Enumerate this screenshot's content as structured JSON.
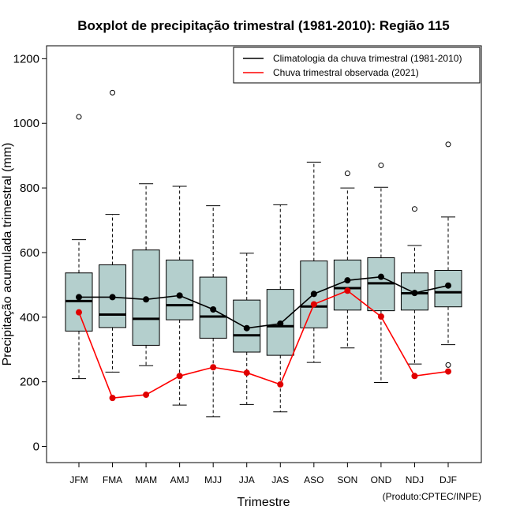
{
  "chart_data": {
    "type": "boxplot",
    "title": "Boxplot de precipitação trimestral (1981-2010): Região 115",
    "xlabel": "Trimestre",
    "ylabel": "Precipitação acumulada trimestral (mm)",
    "ylim": [
      -50,
      1240
    ],
    "yticks": [
      0,
      200,
      400,
      600,
      800,
      1000,
      1200
    ],
    "credit": "(Produto:CPTEC/INPE)",
    "colors": {
      "box_fill": "#b4cfcd",
      "climatology": "#000000",
      "observed": "#ff0000",
      "observed_marker": "#e00000"
    },
    "categories": [
      "JFM",
      "FMA",
      "MAM",
      "AMJ",
      "MJJ",
      "JJA",
      "JAS",
      "ASO",
      "SON",
      "OND",
      "NDJ",
      "DJF"
    ],
    "boxes": [
      {
        "whisker_low": 210,
        "q1": 357,
        "median": 450,
        "q3": 537,
        "whisker_high": 640,
        "outliers": [
          1020
        ]
      },
      {
        "whisker_low": 230,
        "q1": 368,
        "median": 408,
        "q3": 562,
        "whisker_high": 718,
        "outliers": [
          1095
        ]
      },
      {
        "whisker_low": 250,
        "q1": 313,
        "median": 395,
        "q3": 608,
        "whisker_high": 813,
        "outliers": []
      },
      {
        "whisker_low": 128,
        "q1": 392,
        "median": 437,
        "q3": 577,
        "whisker_high": 805,
        "outliers": []
      },
      {
        "whisker_low": 92,
        "q1": 335,
        "median": 402,
        "q3": 524,
        "whisker_high": 745,
        "outliers": []
      },
      {
        "whisker_low": 130,
        "q1": 292,
        "median": 344,
        "q3": 453,
        "whisker_high": 598,
        "outliers": []
      },
      {
        "whisker_low": 107,
        "q1": 282,
        "median": 372,
        "q3": 486,
        "whisker_high": 748,
        "outliers": []
      },
      {
        "whisker_low": 260,
        "q1": 367,
        "median": 433,
        "q3": 574,
        "whisker_high": 880,
        "outliers": []
      },
      {
        "whisker_low": 305,
        "q1": 422,
        "median": 490,
        "q3": 577,
        "whisker_high": 800,
        "outliers": [
          845
        ]
      },
      {
        "whisker_low": 198,
        "q1": 420,
        "median": 505,
        "q3": 584,
        "whisker_high": 802,
        "outliers": [
          870
        ]
      },
      {
        "whisker_low": 255,
        "q1": 422,
        "median": 474,
        "q3": 537,
        "whisker_high": 622,
        "outliers": [
          735
        ]
      },
      {
        "whisker_low": 315,
        "q1": 432,
        "median": 477,
        "q3": 545,
        "whisker_high": 710,
        "outliers": [
          935,
          252
        ]
      }
    ],
    "series": [
      {
        "name": "Climatologia da chuva trimestral (1981-2010)",
        "values": [
          462,
          462,
          455,
          467,
          424,
          366,
          380,
          472,
          514,
          525,
          475,
          498
        ]
      },
      {
        "name": "Chuva trimestral observada (2021)",
        "values": [
          415,
          150,
          160,
          218,
          245,
          228,
          192,
          440,
          482,
          402,
          218,
          232
        ]
      }
    ],
    "legend_position": "top-right"
  }
}
